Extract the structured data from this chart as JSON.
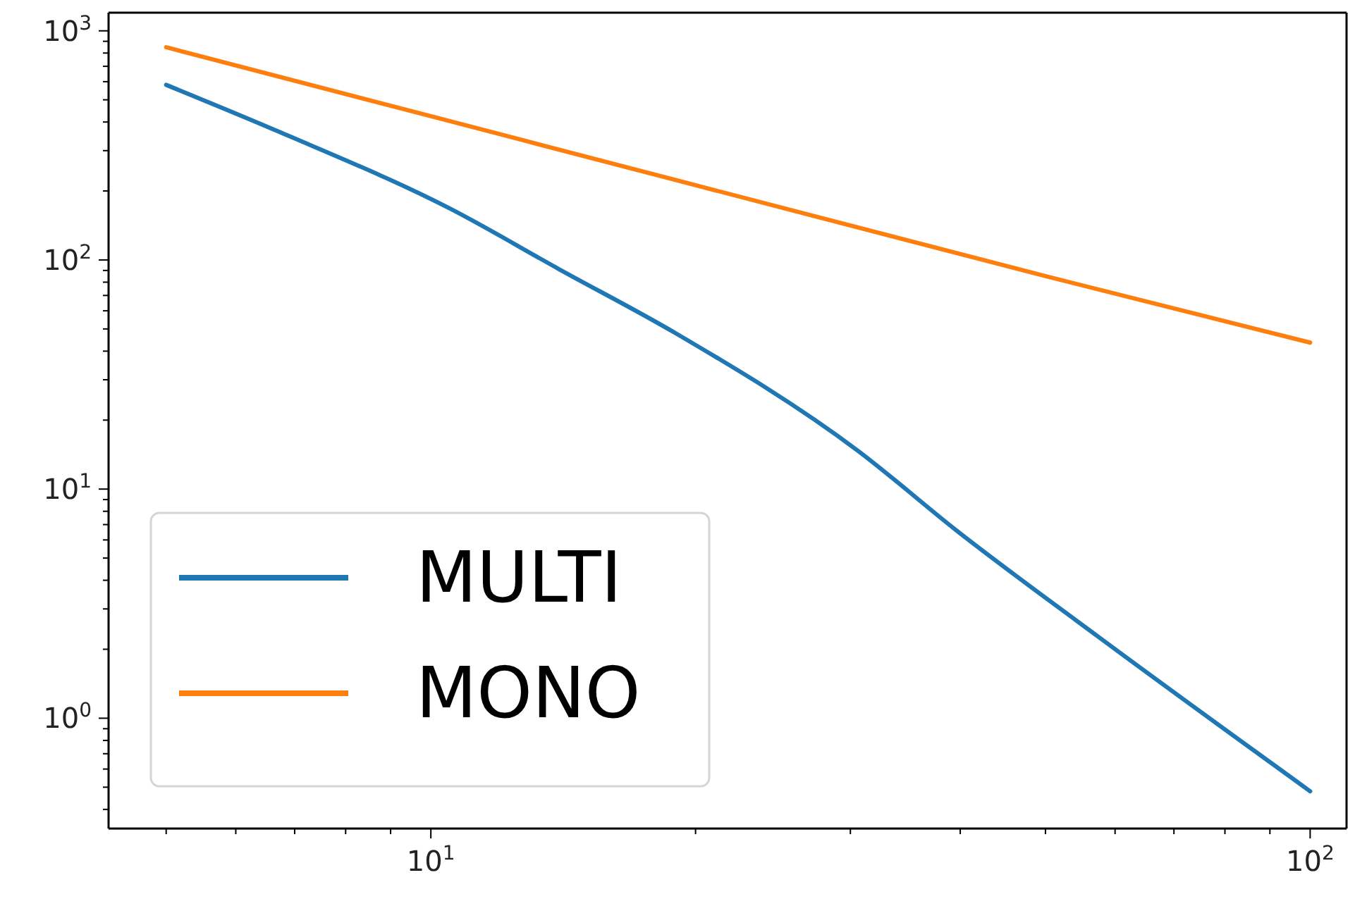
{
  "chart_data": {
    "type": "line",
    "log": "xy",
    "legend": "bottom left",
    "xlim": [
      4.3,
      110
    ],
    "ylim": [
      0.33,
      1200
    ],
    "xticks": [
      {
        "value": 5,
        "label": null
      },
      {
        "value": 6,
        "label": null
      },
      {
        "value": 7,
        "label": null
      },
      {
        "value": 8,
        "label": null
      },
      {
        "value": 9,
        "label": null
      },
      {
        "value": 10,
        "label": "10$^{1}$"
      },
      {
        "value": 20,
        "label": null
      },
      {
        "value": 30,
        "label": null
      },
      {
        "value": 40,
        "label": null
      },
      {
        "value": 50,
        "label": null
      },
      {
        "value": 60,
        "label": null
      },
      {
        "value": 70,
        "label": null
      },
      {
        "value": 80,
        "label": null
      },
      {
        "value": 90,
        "label": null
      },
      {
        "value": 100,
        "label": "10$^{2}$"
      }
    ],
    "yticks": [
      {
        "value": 0.4,
        "label": null
      },
      {
        "value": 0.5,
        "label": null
      },
      {
        "value": 0.6,
        "label": null
      },
      {
        "value": 0.7,
        "label": null
      },
      {
        "value": 0.8,
        "label": null
      },
      {
        "value": 0.9,
        "label": null
      },
      {
        "value": 1,
        "label": "10$^{0}$"
      },
      {
        "value": 2,
        "label": null
      },
      {
        "value": 3,
        "label": null
      },
      {
        "value": 4,
        "label": null
      },
      {
        "value": 5,
        "label": null
      },
      {
        "value": 6,
        "label": null
      },
      {
        "value": 7,
        "label": null
      },
      {
        "value": 8,
        "label": null
      },
      {
        "value": 9,
        "label": null
      },
      {
        "value": 10,
        "label": "10$^{1}$"
      },
      {
        "value": 20,
        "label": null
      },
      {
        "value": 30,
        "label": null
      },
      {
        "value": 40,
        "label": null
      },
      {
        "value": 50,
        "label": null
      },
      {
        "value": 60,
        "label": null
      },
      {
        "value": 70,
        "label": null
      },
      {
        "value": 80,
        "label": null
      },
      {
        "value": 90,
        "label": null
      },
      {
        "value": 100,
        "label": "10$^{2}$"
      },
      {
        "value": 200,
        "label": null
      },
      {
        "value": 300,
        "label": null
      },
      {
        "value": 400,
        "label": null
      },
      {
        "value": 500,
        "label": null
      },
      {
        "value": 600,
        "label": null
      },
      {
        "value": 700,
        "label": null
      },
      {
        "value": 800,
        "label": null
      },
      {
        "value": 900,
        "label": null
      },
      {
        "value": 1000,
        "label": "10$^{3}$"
      }
    ],
    "series": [
      {
        "name": "MULTI",
        "color": "#1f77b4",
        "x": [
          5,
          6.75,
          10.5,
          14,
          19,
          30.6,
          39.6,
          57.4,
          100
        ],
        "values": [
          581,
          360,
          168,
          91,
          47.8,
          14.7,
          6.6,
          2.27,
          0.48
        ]
      },
      {
        "name": "MONO",
        "color": "#ff7f0e",
        "x": [
          5,
          10,
          20,
          50,
          100
        ],
        "values": [
          848,
          424,
          212,
          85,
          43.6
        ]
      }
    ]
  }
}
